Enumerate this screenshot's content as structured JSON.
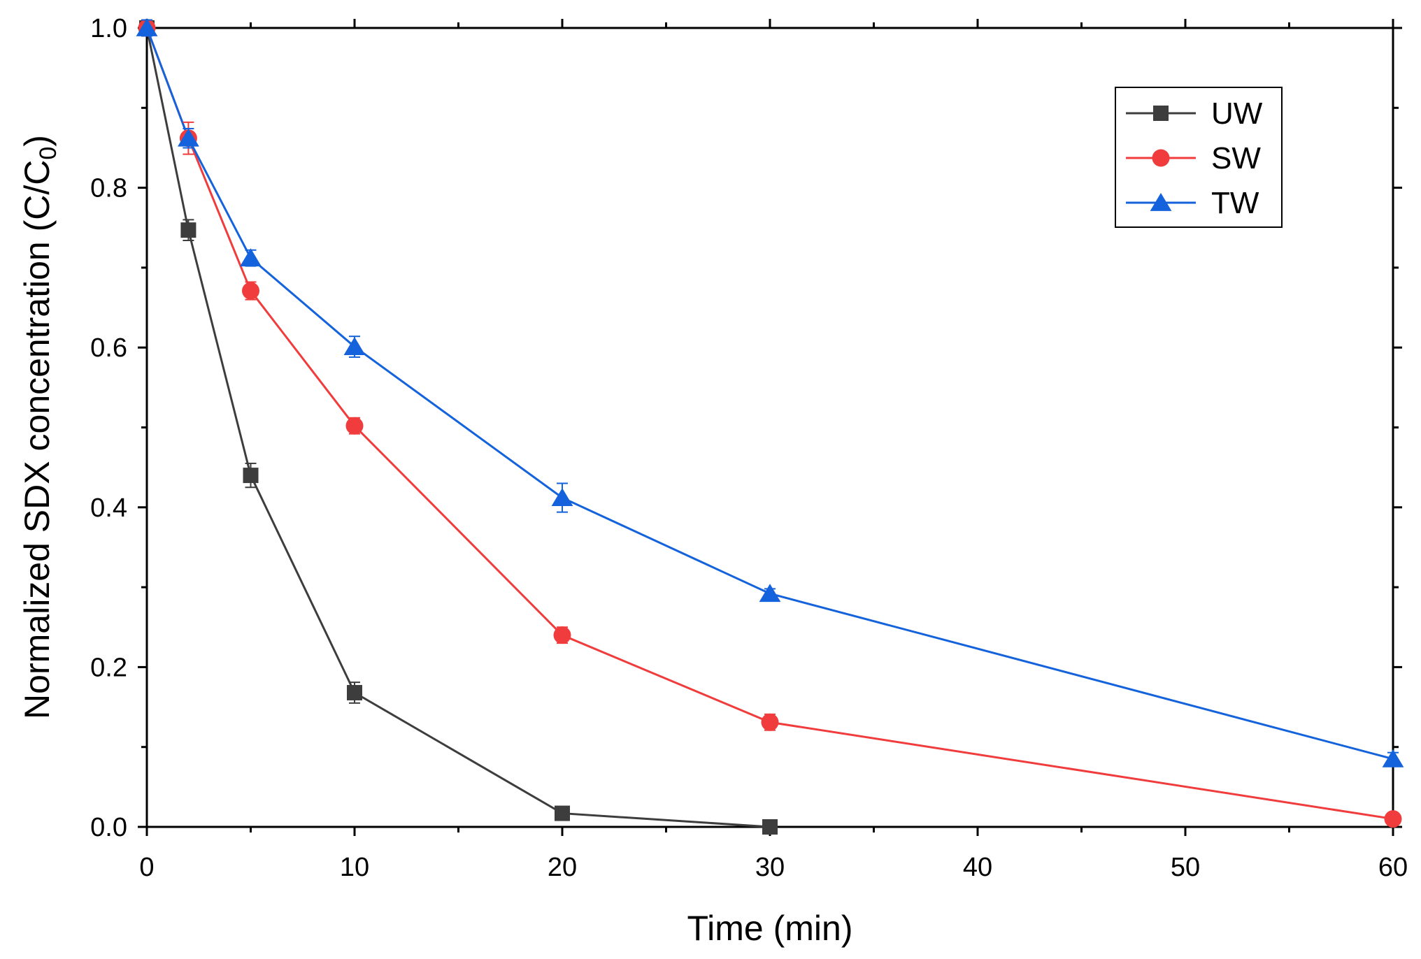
{
  "chart_data": {
    "type": "line",
    "title": "",
    "xlabel": "Time (min)",
    "ylabel_main": "Normalized SDX concentration (C/C",
    "ylabel_sub": "0",
    "ylabel_close": ")",
    "xlim": [
      0,
      60
    ],
    "ylim": [
      0,
      1.0
    ],
    "x_ticks": [
      0,
      10,
      20,
      30,
      40,
      50,
      60
    ],
    "x_tick_labels": [
      "0",
      "10",
      "20",
      "30",
      "40",
      "50",
      "60"
    ],
    "y_ticks": [
      0,
      0.2,
      0.4,
      0.6,
      0.8,
      1.0
    ],
    "y_tick_labels": [
      "0.0",
      "0.2",
      "0.4",
      "0.6",
      "0.8",
      "1.0"
    ],
    "grid": false,
    "legend_position": "top-right",
    "series": [
      {
        "name": "UW",
        "color": "#3d3d3d",
        "marker": "square",
        "x": [
          0,
          2,
          5,
          10,
          20,
          30
        ],
        "y": [
          1.0,
          0.747,
          0.44,
          0.168,
          0.017,
          0.0
        ],
        "err": [
          0.01,
          0.013,
          0.015,
          0.013,
          0.004,
          0.002
        ]
      },
      {
        "name": "SW",
        "color": "#f03c3c",
        "marker": "circle",
        "x": [
          0,
          2,
          5,
          10,
          20,
          30,
          60
        ],
        "y": [
          1.0,
          0.862,
          0.671,
          0.502,
          0.24,
          0.131,
          0.01
        ],
        "err": [
          0.01,
          0.02,
          0.011,
          0.01,
          0.01,
          0.01,
          0.004
        ]
      },
      {
        "name": "TW",
        "color": "#1463dc",
        "marker": "triangle",
        "x": [
          0,
          2,
          5,
          10,
          20,
          30,
          60
        ],
        "y": [
          1.0,
          0.862,
          0.712,
          0.601,
          0.412,
          0.292,
          0.085
        ],
        "err": [
          0.01,
          0.012,
          0.01,
          0.013,
          0.018,
          0.006,
          0.008
        ]
      }
    ]
  }
}
